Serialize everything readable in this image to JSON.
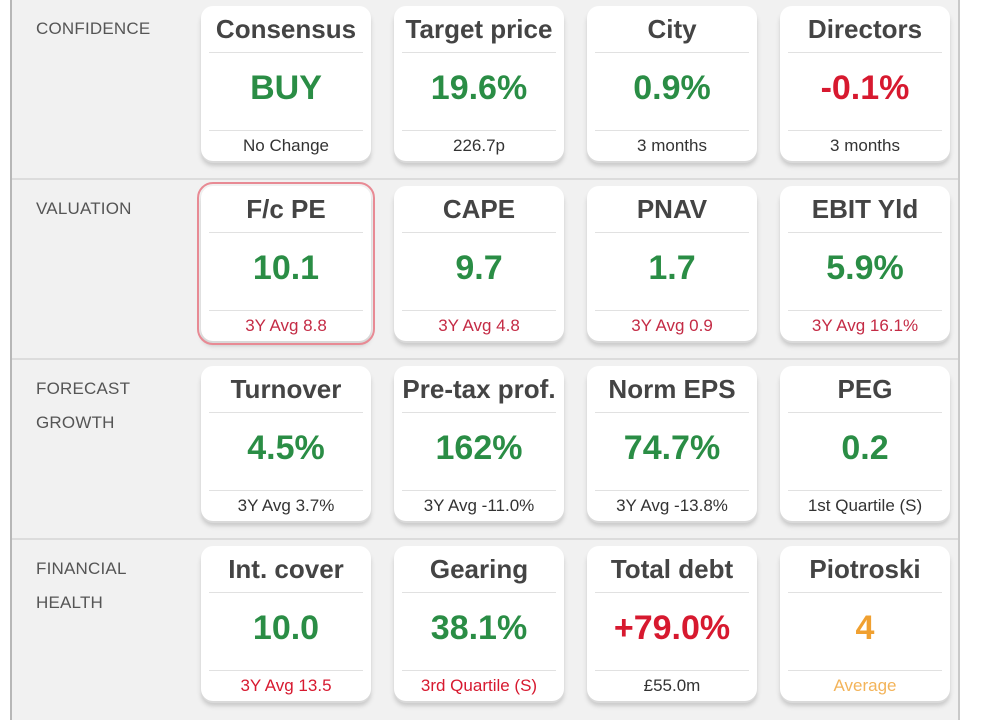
{
  "sections": [
    {
      "label": "CONFIDENCE",
      "cards": [
        {
          "title": "Consensus",
          "value": "BUY",
          "foot": "No Change"
        },
        {
          "title": "Target price",
          "value": "19.6%",
          "foot": "226.7p"
        },
        {
          "title": "City",
          "value": "0.9%",
          "foot": "3 months"
        },
        {
          "title": "Directors",
          "value": "-0.1%",
          "foot": "3 months"
        }
      ]
    },
    {
      "label": "VALUATION",
      "cards": [
        {
          "title": "F/c PE",
          "value": "10.1",
          "foot": "3Y Avg 8.8"
        },
        {
          "title": "CAPE",
          "value": "9.7",
          "foot": "3Y Avg 4.8"
        },
        {
          "title": "PNAV",
          "value": "1.7",
          "foot": "3Y Avg 0.9"
        },
        {
          "title": "EBIT Yld",
          "value": "5.9%",
          "foot": "3Y Avg 16.1%"
        }
      ]
    },
    {
      "label_line1": "FORECAST",
      "label_line2": "GROWTH",
      "cards": [
        {
          "title": "Turnover",
          "value": "4.5%",
          "foot": "3Y Avg 3.7%"
        },
        {
          "title": "Pre-tax prof.",
          "value": "162%",
          "foot": "3Y Avg -11.0%"
        },
        {
          "title": "Norm EPS",
          "value": "74.7%",
          "foot": "3Y Avg -13.8%"
        },
        {
          "title": "PEG",
          "value": "0.2",
          "foot": "1st Quartile (S)"
        }
      ]
    },
    {
      "label_line1": "FINANCIAL",
      "label_line2": "HEALTH",
      "cards": [
        {
          "title": "Int. cover",
          "value": "10.0",
          "foot": "3Y Avg 13.5"
        },
        {
          "title": "Gearing",
          "value": "38.1%",
          "foot": "3rd Quartile (S)"
        },
        {
          "title": "Total debt",
          "value": "+79.0%",
          "foot": "£55.0m"
        },
        {
          "title": "Piotroski",
          "value": "4",
          "foot": "Average"
        }
      ]
    }
  ],
  "colors": {
    "positive": "#2a8d45",
    "negative": "#d7192f",
    "neutral": "#f0a030",
    "selected_outline": "#e88a94"
  }
}
